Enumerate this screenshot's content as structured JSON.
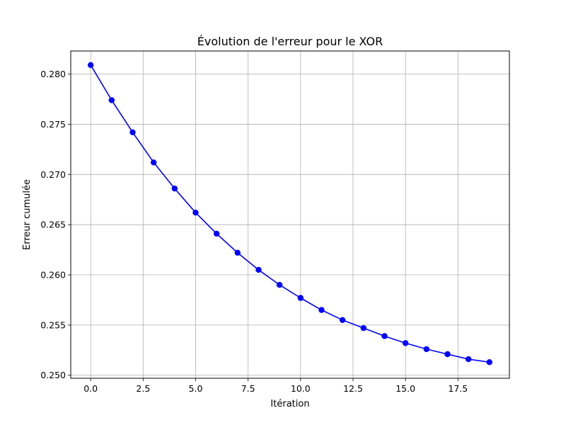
{
  "chart_data": {
    "type": "line",
    "title": "Évolution de l'erreur pour le XOR",
    "xlabel": "Itération",
    "ylabel": "Erreur cumulée",
    "xlim": [
      -0.95,
      19.95
    ],
    "ylim": [
      0.2497,
      0.2823
    ],
    "grid": true,
    "x_ticks": [
      0,
      2.5,
      5,
      7.5,
      10,
      12.5,
      15,
      17.5
    ],
    "x_tick_labels": [
      "0.0",
      "2.5",
      "5.0",
      "7.5",
      "10.0",
      "12.5",
      "15.0",
      "17.5"
    ],
    "y_ticks": [
      0.25,
      0.255,
      0.26,
      0.265,
      0.27,
      0.275,
      0.28
    ],
    "y_tick_labels": [
      "0.250",
      "0.255",
      "0.260",
      "0.265",
      "0.270",
      "0.275",
      "0.280"
    ],
    "series": [
      {
        "color": "#0000ff",
        "marker": "circle",
        "x": [
          0,
          1,
          2,
          3,
          4,
          5,
          6,
          7,
          8,
          9,
          10,
          11,
          12,
          13,
          14,
          15,
          16,
          17,
          18,
          19
        ],
        "y": [
          0.2809,
          0.2774,
          0.2742,
          0.2712,
          0.2686,
          0.2662,
          0.2641,
          0.2622,
          0.2605,
          0.259,
          0.2577,
          0.2565,
          0.2555,
          0.2547,
          0.2539,
          0.2532,
          0.2526,
          0.2521,
          0.2516,
          0.2513
        ]
      }
    ]
  }
}
